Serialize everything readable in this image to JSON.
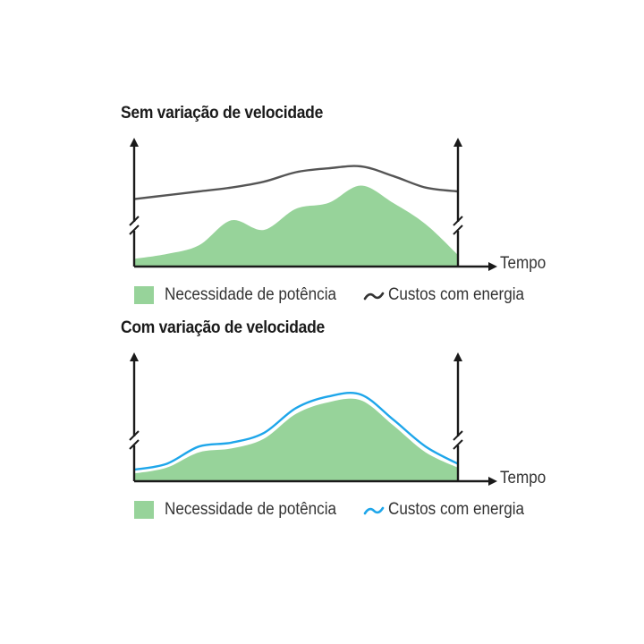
{
  "chart_data": [
    {
      "type": "area",
      "title": "Sem variação de velocidade",
      "xlabel": "Tempo",
      "ylabel": "",
      "x": [
        0,
        10,
        20,
        30,
        40,
        50,
        60,
        70,
        80,
        90,
        100
      ],
      "series": [
        {
          "name": "Necessidade de potência",
          "kind": "area",
          "values": [
            8,
            13,
            22,
            48,
            38,
            60,
            66,
            84,
            66,
            44,
            12
          ]
        },
        {
          "name": "Custos com energia",
          "kind": "line",
          "values": [
            70,
            74,
            78,
            82,
            88,
            98,
            102,
            104,
            94,
            82,
            78
          ]
        }
      ],
      "ylim": [
        0,
        130
      ],
      "grid": false,
      "legend": "bottom",
      "colors": {
        "area": "#97d39a",
        "line": "#555555"
      }
    },
    {
      "type": "area",
      "title": "Com variação de velocidade",
      "xlabel": "Tempo",
      "ylabel": "",
      "x": [
        0,
        10,
        20,
        30,
        40,
        50,
        60,
        70,
        80,
        90,
        100
      ],
      "series": [
        {
          "name": "Necessidade de potência",
          "kind": "area",
          "values": [
            8,
            14,
            30,
            34,
            44,
            70,
            82,
            84,
            58,
            30,
            14
          ]
        },
        {
          "name": "Custos com energia",
          "kind": "line",
          "values": [
            12,
            18,
            36,
            40,
            50,
            76,
            88,
            90,
            64,
            36,
            18
          ]
        }
      ],
      "ylim": [
        0,
        130
      ],
      "grid": false,
      "legend": "bottom",
      "colors": {
        "area": "#97d39a",
        "line": "#1ea6ea"
      }
    }
  ],
  "legend": {
    "need_label": "Necessidade de potência",
    "cost_label": "Custos com energia"
  }
}
